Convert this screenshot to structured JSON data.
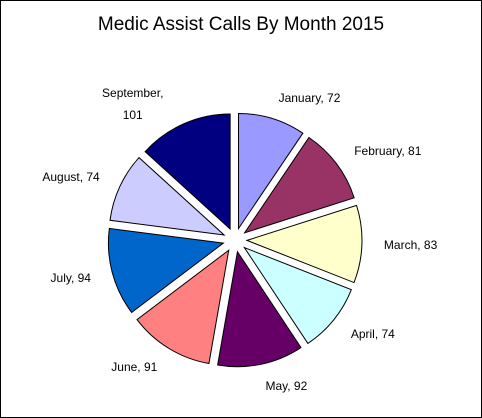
{
  "chart_data": {
    "type": "pie",
    "title": "Medic Assist Calls By Month 2015",
    "categories": [
      "January",
      "February",
      "March",
      "April",
      "May",
      "June",
      "July",
      "August",
      "September"
    ],
    "values": [
      72,
      81,
      83,
      74,
      92,
      91,
      94,
      74,
      101
    ],
    "value_labels": [
      "January, 72",
      "February, 81",
      "March, 83",
      "April, 74",
      "May, 92",
      "June, 91",
      "July, 94",
      "August, 74",
      "September, 101"
    ],
    "colors": [
      "#9999ff",
      "#993366",
      "#ffffcc",
      "#ccffff",
      "#660066",
      "#ff8080",
      "#0066cc",
      "#ccccff",
      "#000080"
    ]
  }
}
